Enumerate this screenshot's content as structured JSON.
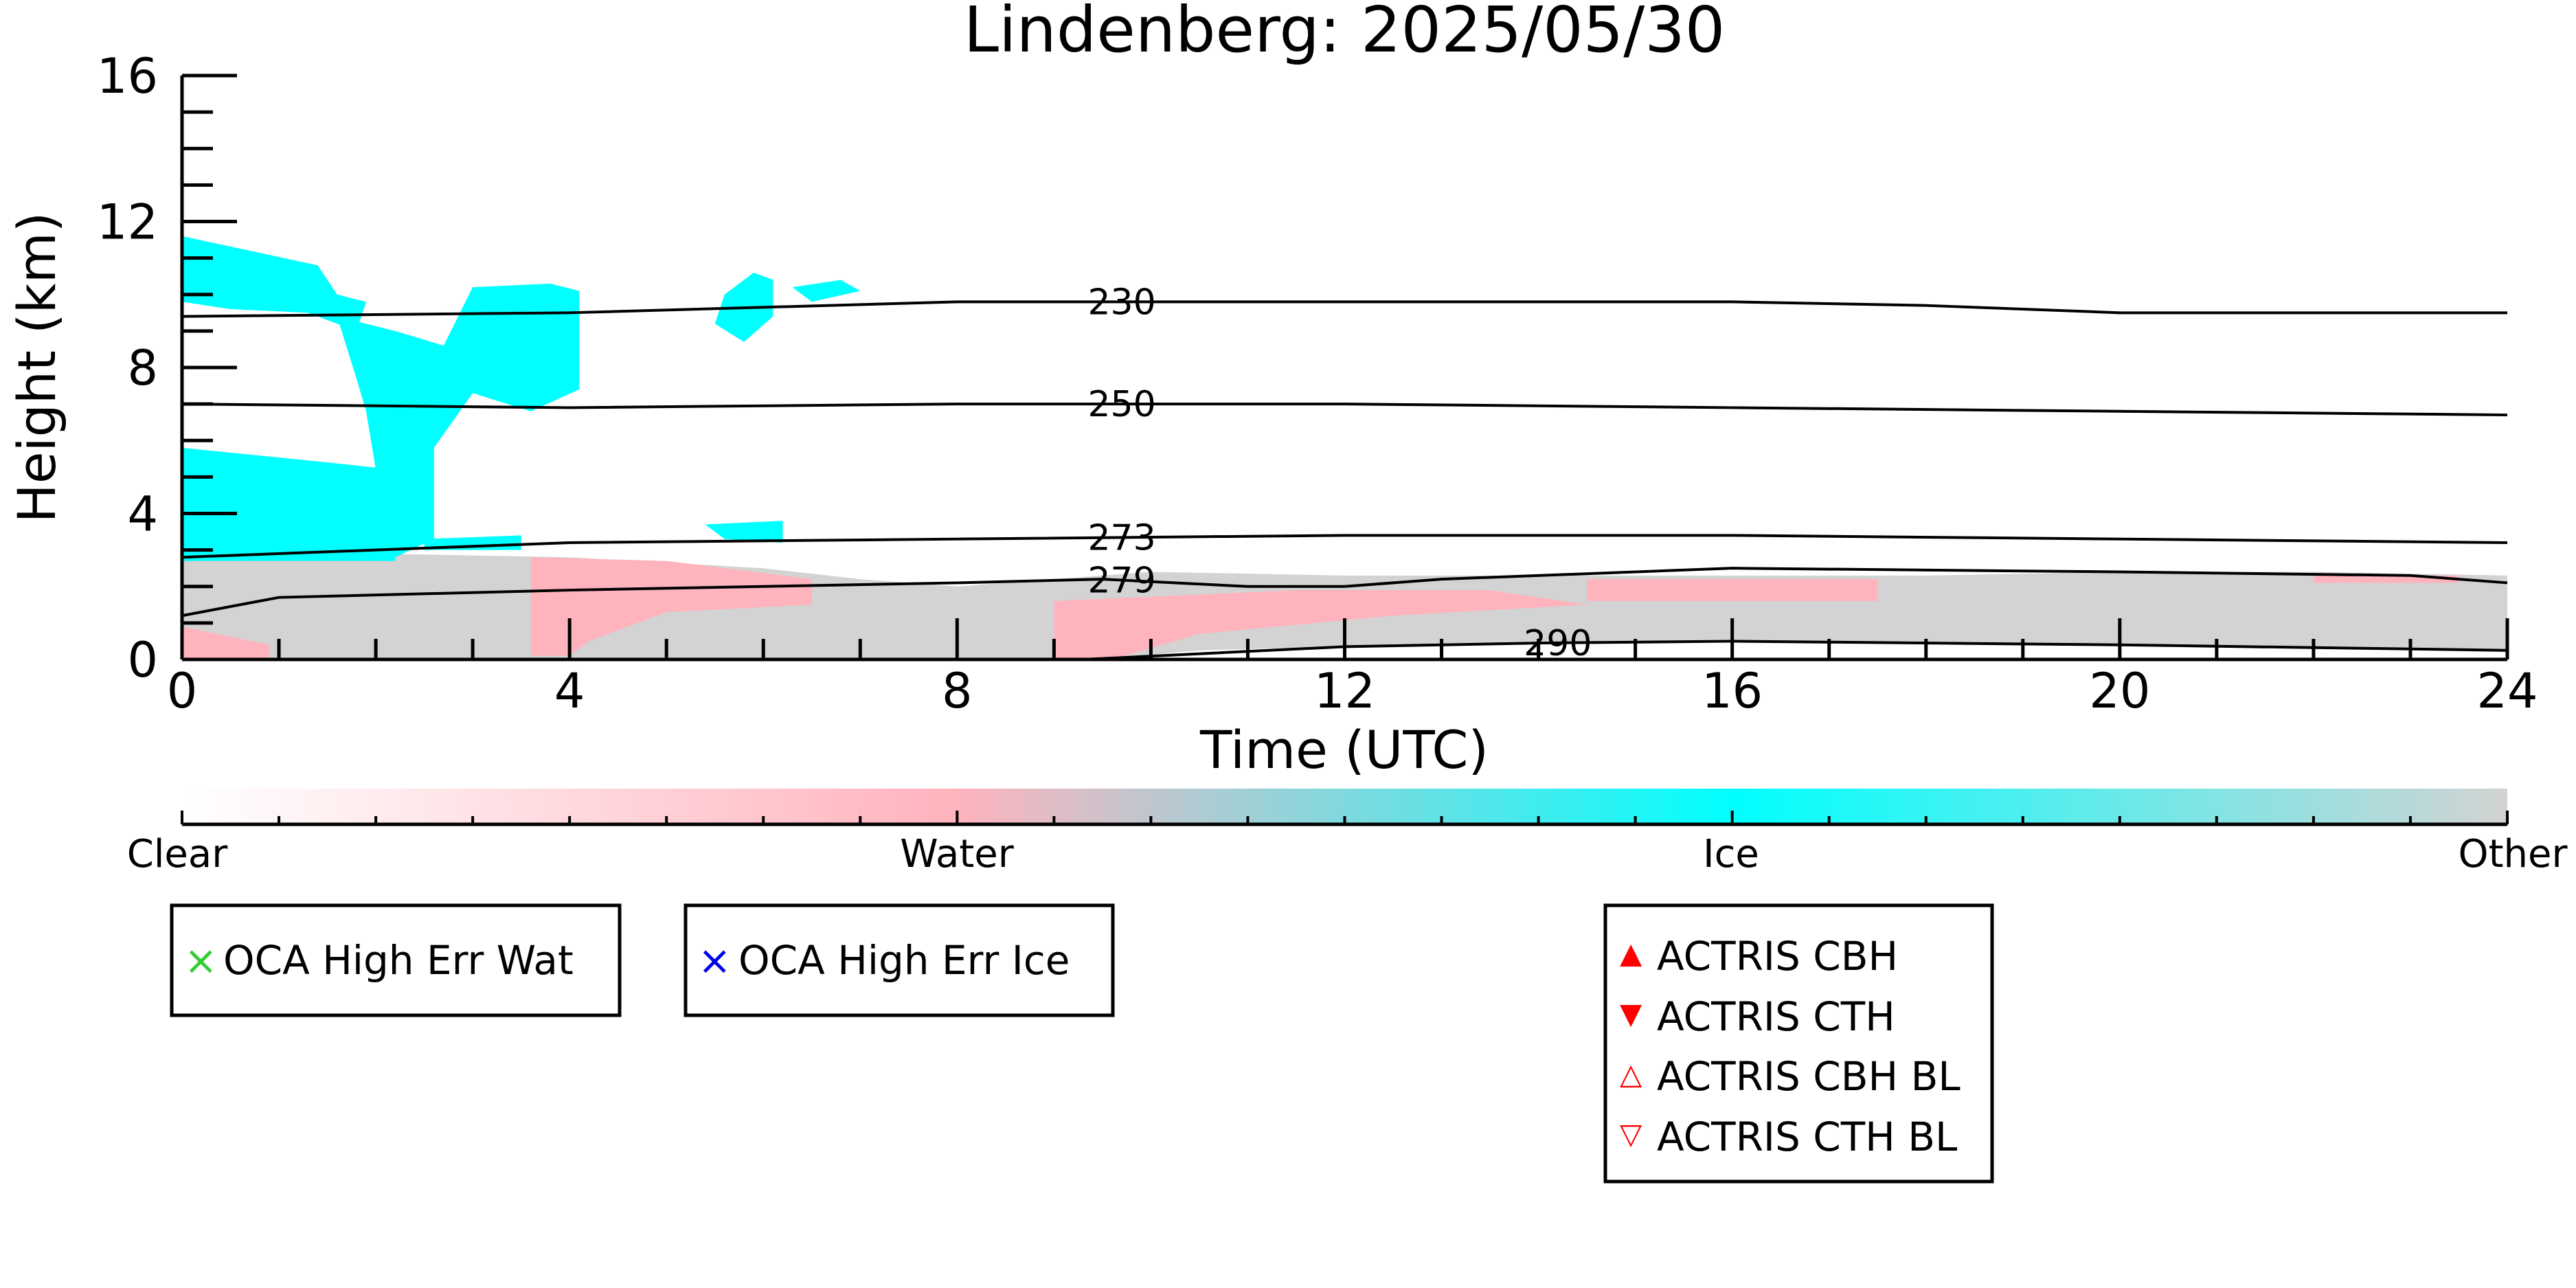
{
  "chart_data": {
    "type": "heatmap",
    "title": "Lindenberg: 2025/05/30",
    "xlabel": "Time (UTC)",
    "ylabel": "Height (km)",
    "xlim": [
      0,
      24
    ],
    "ylim": [
      0,
      16
    ],
    "xticks": [
      0,
      4,
      8,
      12,
      16,
      20,
      24
    ],
    "yticks": [
      0,
      4,
      8,
      12,
      16
    ],
    "colorbar": {
      "labels": [
        "Clear",
        "Water",
        "Ice",
        "Other"
      ],
      "colors": [
        "#ffffff",
        "#ffb3bd",
        "#00ffff",
        "#d3d3d3"
      ]
    },
    "regions": [
      {
        "class": "Other",
        "color": "#d3d3d3",
        "polygon": [
          [
            0,
            0
          ],
          [
            0,
            2.8
          ],
          [
            2,
            2.9
          ],
          [
            4,
            2.8
          ],
          [
            6,
            2.5
          ],
          [
            7,
            2.2
          ],
          [
            8,
            2.0
          ],
          [
            9,
            2.2
          ],
          [
            10,
            2.4
          ],
          [
            12,
            2.3
          ],
          [
            14,
            2.3
          ],
          [
            16,
            2.3
          ],
          [
            18,
            2.3
          ],
          [
            20,
            2.4
          ],
          [
            22,
            2.4
          ],
          [
            24,
            2.3
          ],
          [
            24,
            0.2
          ],
          [
            20,
            0.4
          ],
          [
            16,
            0.5
          ],
          [
            14,
            0.45
          ],
          [
            12,
            0.35
          ],
          [
            10.5,
            0.25
          ],
          [
            9.5,
            0
          ],
          [
            0,
            0
          ]
        ]
      },
      {
        "class": "Water",
        "color": "#ffb3bd",
        "polygon": [
          [
            3.6,
            0.1
          ],
          [
            3.6,
            2.8
          ],
          [
            5,
            2.7
          ],
          [
            6.5,
            2.2
          ],
          [
            6.5,
            1.5
          ],
          [
            5,
            1.3
          ],
          [
            4.2,
            0.5
          ],
          [
            4.0,
            0.1
          ]
        ]
      },
      {
        "class": "Water",
        "color": "#ffb3bd",
        "polygon": [
          [
            9,
            0
          ],
          [
            9,
            1.6
          ],
          [
            11.5,
            1.9
          ],
          [
            13.5,
            1.9
          ],
          [
            14.5,
            1.5
          ],
          [
            12.5,
            1.2
          ],
          [
            10.5,
            0.7
          ],
          [
            9.6,
            0
          ]
        ]
      },
      {
        "class": "Water",
        "color": "#ffb3bd",
        "polygon": [
          [
            0,
            0
          ],
          [
            0,
            0.9
          ],
          [
            0.9,
            0.4
          ],
          [
            0.9,
            0
          ]
        ]
      },
      {
        "class": "Water",
        "color": "#ffb3bd",
        "polygon": [
          [
            14.5,
            1.6
          ],
          [
            14.5,
            2.2
          ],
          [
            17.5,
            2.2
          ],
          [
            17.5,
            1.6
          ]
        ]
      },
      {
        "class": "Water",
        "color": "#ffb3bd",
        "polygon": [
          [
            22,
            2.1
          ],
          [
            22,
            2.3
          ],
          [
            23.5,
            2.3
          ],
          [
            23.5,
            2.1
          ]
        ]
      },
      {
        "class": "Ice",
        "color": "#00ffff",
        "polygon": [
          [
            0,
            2.7
          ],
          [
            0,
            5.8
          ],
          [
            1.5,
            5.4
          ],
          [
            2.2,
            5.2
          ],
          [
            2.2,
            2.7
          ]
        ]
      },
      {
        "class": "Ice",
        "color": "#00ffff",
        "polygon": [
          [
            0,
            9.8
          ],
          [
            0,
            11.6
          ],
          [
            0.7,
            11.2
          ],
          [
            1.4,
            10.8
          ],
          [
            1.6,
            10.0
          ],
          [
            1.9,
            9.8
          ],
          [
            1.8,
            9.0
          ],
          [
            1.3,
            9.5
          ],
          [
            0.5,
            9.6
          ]
        ]
      },
      {
        "class": "Ice",
        "color": "#00ffff",
        "polygon": [
          [
            1.6,
            9.4
          ],
          [
            2.2,
            9.0
          ],
          [
            2.7,
            8.6
          ],
          [
            3.0,
            10.2
          ],
          [
            3.8,
            10.3
          ],
          [
            4.1,
            10.1
          ],
          [
            4.1,
            7.4
          ],
          [
            3.6,
            6.8
          ],
          [
            3.0,
            7.3
          ],
          [
            2.6,
            5.8
          ],
          [
            2.6,
            3.3
          ],
          [
            2.2,
            2.8
          ],
          [
            2.0,
            5.2
          ],
          [
            1.9,
            6.8
          ],
          [
            1.8,
            7.7
          ]
        ]
      },
      {
        "class": "Ice",
        "color": "#00ffff",
        "polygon": [
          [
            5.6,
            10.0
          ],
          [
            5.9,
            10.6
          ],
          [
            6.1,
            10.4
          ],
          [
            6.1,
            9.4
          ],
          [
            5.8,
            8.7
          ],
          [
            5.5,
            9.2
          ]
        ]
      },
      {
        "class": "Ice",
        "color": "#00ffff",
        "polygon": [
          [
            6.3,
            10.2
          ],
          [
            6.8,
            10.4
          ],
          [
            7.0,
            10.1
          ],
          [
            6.5,
            9.8
          ]
        ]
      },
      {
        "class": "Ice",
        "color": "#00ffff",
        "polygon": [
          [
            5.4,
            3.7
          ],
          [
            6.2,
            3.8
          ],
          [
            6.2,
            3.2
          ],
          [
            5.6,
            3.3
          ]
        ]
      },
      {
        "class": "Ice",
        "color": "#00ffff",
        "polygon": [
          [
            2.5,
            3.3
          ],
          [
            3.5,
            3.4
          ],
          [
            3.5,
            3.0
          ],
          [
            2.5,
            3.0
          ]
        ]
      }
    ],
    "isotherms": [
      {
        "label": "230",
        "label_x": 9.7,
        "points": [
          [
            0,
            9.4
          ],
          [
            4,
            9.5
          ],
          [
            8,
            9.8
          ],
          [
            12,
            9.8
          ],
          [
            16,
            9.8
          ],
          [
            18,
            9.7
          ],
          [
            20,
            9.5
          ],
          [
            24,
            9.5
          ]
        ]
      },
      {
        "label": "250",
        "label_x": 9.7,
        "points": [
          [
            0,
            7.0
          ],
          [
            4,
            6.9
          ],
          [
            8,
            7.0
          ],
          [
            12,
            7.0
          ],
          [
            16,
            6.9
          ],
          [
            20,
            6.8
          ],
          [
            24,
            6.7
          ]
        ]
      },
      {
        "label": "273",
        "label_x": 9.7,
        "points": [
          [
            0,
            2.8
          ],
          [
            2,
            3.0
          ],
          [
            4,
            3.2
          ],
          [
            8,
            3.3
          ],
          [
            12,
            3.4
          ],
          [
            16,
            3.4
          ],
          [
            20,
            3.3
          ],
          [
            24,
            3.2
          ]
        ]
      },
      {
        "label": "279",
        "label_x": 9.7,
        "points": [
          [
            0,
            1.2
          ],
          [
            1,
            1.7
          ],
          [
            4,
            1.9
          ],
          [
            8,
            2.1
          ],
          [
            9.5,
            2.2
          ],
          [
            11,
            2.0
          ],
          [
            12,
            2.0
          ],
          [
            13,
            2.2
          ],
          [
            16,
            2.5
          ],
          [
            20,
            2.4
          ],
          [
            23,
            2.3
          ],
          [
            24,
            2.1
          ]
        ]
      },
      {
        "label": "290",
        "label_x": 14.2,
        "points": [
          [
            9.3,
            0
          ],
          [
            12,
            0.35
          ],
          [
            14,
            0.45
          ],
          [
            16,
            0.5
          ],
          [
            20,
            0.4
          ],
          [
            24,
            0.25
          ]
        ]
      }
    ],
    "legend": {
      "box1": [
        {
          "marker": "×",
          "color": "#33cc33",
          "label": "OCA High Err Wat"
        }
      ],
      "box2": [
        {
          "marker": "×",
          "color": "#0000ee",
          "label": "OCA High Err Ice"
        }
      ],
      "box3": [
        {
          "marker": "▲",
          "color": "#ff0000",
          "label": "ACTRIS CBH"
        },
        {
          "marker": "▼",
          "color": "#ff0000",
          "label": "ACTRIS CTH"
        },
        {
          "marker": "△",
          "color": "#ff0000",
          "label": "ACTRIS CBH BL"
        },
        {
          "marker": "▽",
          "color": "#ff0000",
          "label": "ACTRIS CTH BL"
        }
      ]
    }
  }
}
